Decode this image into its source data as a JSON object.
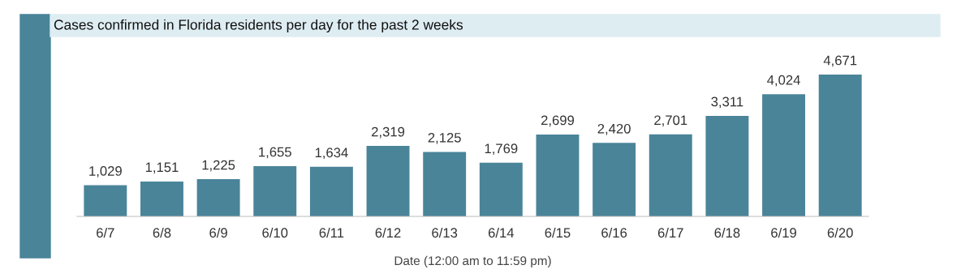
{
  "chart_data": {
    "type": "bar",
    "title": "Cases confirmed in Florida residents per day for the past 2 weeks",
    "xlabel": "Date (12:00 am to 11:59 pm)",
    "categories": [
      "6/7",
      "6/8",
      "6/9",
      "6/10",
      "6/11",
      "6/12",
      "6/13",
      "6/14",
      "6/15",
      "6/16",
      "6/17",
      "6/18",
      "6/19",
      "6/20"
    ],
    "values": [
      1029,
      1151,
      1225,
      1655,
      1634,
      2319,
      2125,
      1769,
      2699,
      2420,
      2701,
      3311,
      4024,
      4671
    ],
    "value_labels": [
      "1,029",
      "1,151",
      "1,225",
      "1,655",
      "1,634",
      "2,319",
      "2,125",
      "1,769",
      "2,699",
      "2,420",
      "2,701",
      "3,311",
      "4,024",
      "4,671"
    ],
    "color": "#4a8499",
    "grid": false,
    "legend": false
  }
}
